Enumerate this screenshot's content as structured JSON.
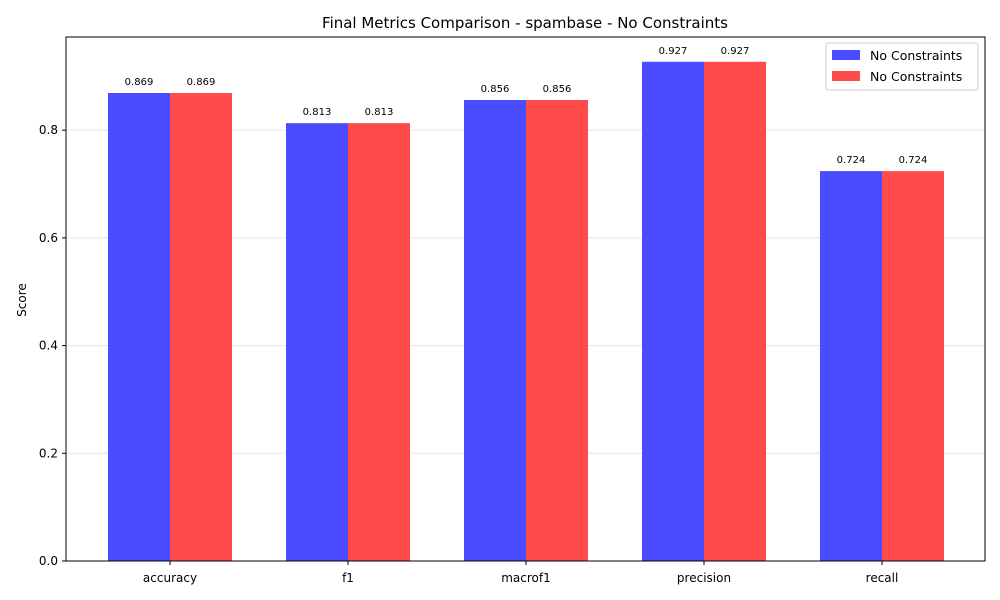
{
  "chart_data": {
    "type": "bar",
    "title": "Final Metrics Comparison - spambase - No Constraints",
    "xlabel": "",
    "ylabel": "Score",
    "categories": [
      "accuracy",
      "f1",
      "macrof1",
      "precision",
      "recall"
    ],
    "series": [
      {
        "name": "No Constraints",
        "color": "#4b4bff",
        "values": [
          0.869,
          0.813,
          0.856,
          0.927,
          0.724
        ],
        "labels": [
          "0.869",
          "0.813",
          "0.856",
          "0.927",
          "0.724"
        ]
      },
      {
        "name": "No Constraints",
        "color": "#ff4b4b",
        "values": [
          0.869,
          0.813,
          0.856,
          0.927,
          0.724
        ],
        "labels": [
          "0.869",
          "0.813",
          "0.856",
          "0.927",
          "0.724"
        ]
      }
    ],
    "ylim": [
      0,
      0.973
    ],
    "yticks": [
      0.0,
      0.2,
      0.4,
      0.6,
      0.8
    ],
    "ytick_labels": [
      "0.0",
      "0.2",
      "0.4",
      "0.6",
      "0.8"
    ],
    "grid": "y",
    "legend_position": "top-right"
  }
}
